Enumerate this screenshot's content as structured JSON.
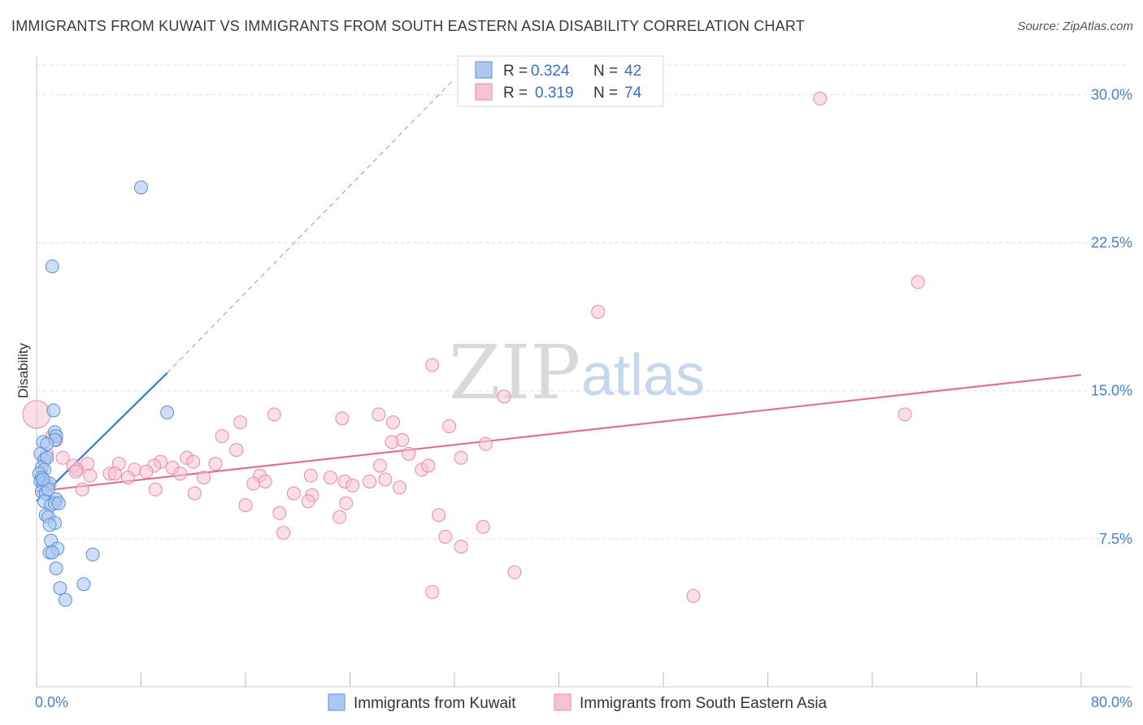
{
  "header": {
    "title": "IMMIGRANTS FROM KUWAIT VS IMMIGRANTS FROM SOUTH EASTERN ASIA DISABILITY CORRELATION CHART",
    "source": "Source: ZipAtlas.com"
  },
  "watermark": {
    "zip": "ZIP",
    "atlas": "atlas"
  },
  "legend": {
    "kuwait": {
      "r_label": "R =",
      "r_value": "0.324",
      "n_label": "N =",
      "n_value": "42"
    },
    "sea": {
      "r_label": "R =",
      "r_value": "0.319",
      "n_label": "N =",
      "n_value": "74"
    }
  },
  "colors": {
    "kuwait_fill": "#aac8f0",
    "kuwait_stroke": "#5b8fd6",
    "kuwait_line": "#3a78d0",
    "sea_fill": "#f7c3d4",
    "sea_stroke": "#e88aa8",
    "sea_line": "#e06f98",
    "grid": "#dddddd",
    "axis_text": "#4a7fc9"
  },
  "chart_data": {
    "type": "scatter",
    "title": "IMMIGRANTS FROM KUWAIT VS IMMIGRANTS FROM SOUTH EASTERN ASIA DISABILITY CORRELATION CHART",
    "xlabel": "",
    "ylabel": "Disability",
    "xlim": [
      0,
      80
    ],
    "ylim": [
      0,
      31.5
    ],
    "x_tick_labels": [
      "0.0%",
      "80.0%"
    ],
    "y_ticks": [
      7.5,
      15.0,
      22.5,
      30.0
    ],
    "y_tick_labels": [
      "7.5%",
      "15.0%",
      "22.5%",
      "30.0%"
    ],
    "grid": true,
    "legend_position": "top-center",
    "series": [
      {
        "name": "Immigrants from Kuwait",
        "r": 0.324,
        "n": 42,
        "points": [
          [
            8.0,
            25.3
          ],
          [
            1.2,
            21.3
          ],
          [
            1.3,
            14.0
          ],
          [
            1.4,
            12.9
          ],
          [
            1.5,
            12.7
          ],
          [
            1.4,
            12.5
          ],
          [
            0.5,
            12.4
          ],
          [
            0.8,
            12.3
          ],
          [
            0.3,
            11.8
          ],
          [
            0.6,
            11.5
          ],
          [
            0.8,
            11.6
          ],
          [
            0.4,
            11.1
          ],
          [
            0.6,
            11.0
          ],
          [
            0.2,
            10.8
          ],
          [
            0.4,
            10.6
          ],
          [
            0.3,
            10.4
          ],
          [
            0.5,
            10.3
          ],
          [
            0.8,
            10.2
          ],
          [
            1.0,
            10.3
          ],
          [
            0.4,
            9.9
          ],
          [
            0.7,
            9.8
          ],
          [
            1.5,
            9.5
          ],
          [
            0.6,
            9.4
          ],
          [
            1.1,
            9.2
          ],
          [
            1.4,
            9.3
          ],
          [
            0.7,
            8.7
          ],
          [
            0.9,
            8.6
          ],
          [
            1.4,
            8.3
          ],
          [
            1.0,
            8.2
          ],
          [
            1.1,
            7.4
          ],
          [
            1.0,
            6.8
          ],
          [
            1.6,
            7.0
          ],
          [
            1.2,
            6.8
          ],
          [
            1.5,
            6.0
          ],
          [
            4.3,
            6.7
          ],
          [
            1.8,
            5.0
          ],
          [
            3.6,
            5.2
          ],
          [
            2.2,
            4.4
          ],
          [
            10.0,
            13.9
          ],
          [
            0.9,
            10.0
          ],
          [
            0.5,
            10.5
          ],
          [
            1.7,
            9.3
          ]
        ],
        "trend": {
          "solid": [
            [
              0,
              9.4
            ],
            [
              10.0,
              15.9
            ]
          ],
          "dashed": [
            [
              10.0,
              15.9
            ],
            [
              32.0,
              30.8
            ]
          ]
        }
      },
      {
        "name": "Immigrants from South Eastern Asia",
        "r": 0.319,
        "n": 74,
        "points": [
          [
            60.0,
            29.8
          ],
          [
            67.5,
            20.5
          ],
          [
            43.0,
            19.0
          ],
          [
            30.3,
            16.3
          ],
          [
            35.8,
            14.7
          ],
          [
            66.5,
            13.8
          ],
          [
            18.2,
            13.8
          ],
          [
            23.4,
            13.6
          ],
          [
            26.2,
            13.8
          ],
          [
            31.6,
            13.2
          ],
          [
            15.6,
            13.4
          ],
          [
            27.3,
            13.4
          ],
          [
            14.2,
            12.7
          ],
          [
            28.0,
            12.5
          ],
          [
            27.2,
            12.4
          ],
          [
            34.4,
            12.3
          ],
          [
            0.0,
            13.8
          ],
          [
            1.2,
            12.7
          ],
          [
            1.5,
            12.5
          ],
          [
            15.3,
            12.0
          ],
          [
            28.5,
            11.8
          ],
          [
            0.8,
            11.8
          ],
          [
            2.0,
            11.6
          ],
          [
            11.5,
            11.6
          ],
          [
            12.0,
            11.4
          ],
          [
            32.5,
            11.6
          ],
          [
            3.9,
            11.3
          ],
          [
            6.3,
            11.3
          ],
          [
            9.5,
            11.4
          ],
          [
            13.7,
            11.3
          ],
          [
            10.4,
            11.1
          ],
          [
            7.5,
            11.0
          ],
          [
            9.0,
            11.2
          ],
          [
            3.1,
            11.0
          ],
          [
            2.8,
            11.2
          ],
          [
            8.4,
            10.9
          ],
          [
            29.5,
            11.0
          ],
          [
            5.6,
            10.8
          ],
          [
            11.0,
            10.8
          ],
          [
            12.8,
            10.6
          ],
          [
            21.0,
            10.7
          ],
          [
            30.0,
            11.2
          ],
          [
            26.3,
            11.2
          ],
          [
            22.5,
            10.6
          ],
          [
            4.1,
            10.7
          ],
          [
            7.0,
            10.6
          ],
          [
            17.1,
            10.7
          ],
          [
            23.6,
            10.4
          ],
          [
            17.5,
            10.4
          ],
          [
            25.5,
            10.4
          ],
          [
            6.0,
            10.8
          ],
          [
            16.6,
            10.3
          ],
          [
            26.7,
            10.5
          ],
          [
            24.2,
            10.2
          ],
          [
            3.5,
            10.0
          ],
          [
            9.1,
            10.0
          ],
          [
            27.8,
            10.1
          ],
          [
            12.1,
            9.8
          ],
          [
            21.1,
            9.7
          ],
          [
            20.8,
            9.4
          ],
          [
            23.7,
            9.3
          ],
          [
            16.0,
            9.2
          ],
          [
            18.6,
            8.8
          ],
          [
            23.2,
            8.6
          ],
          [
            30.8,
            8.7
          ],
          [
            34.2,
            8.1
          ],
          [
            18.9,
            7.8
          ],
          [
            31.3,
            7.6
          ],
          [
            32.5,
            7.1
          ],
          [
            36.6,
            5.8
          ],
          [
            30.3,
            4.8
          ],
          [
            50.3,
            4.6
          ],
          [
            3.0,
            10.9
          ],
          [
            19.7,
            9.8
          ]
        ],
        "trend": {
          "solid": [
            [
              0,
              9.9
            ],
            [
              80.0,
              15.8
            ]
          ]
        }
      }
    ]
  },
  "bottom_legend": {
    "kuwait": "Immigrants from Kuwait",
    "sea": "Immigrants from South Eastern Asia"
  }
}
